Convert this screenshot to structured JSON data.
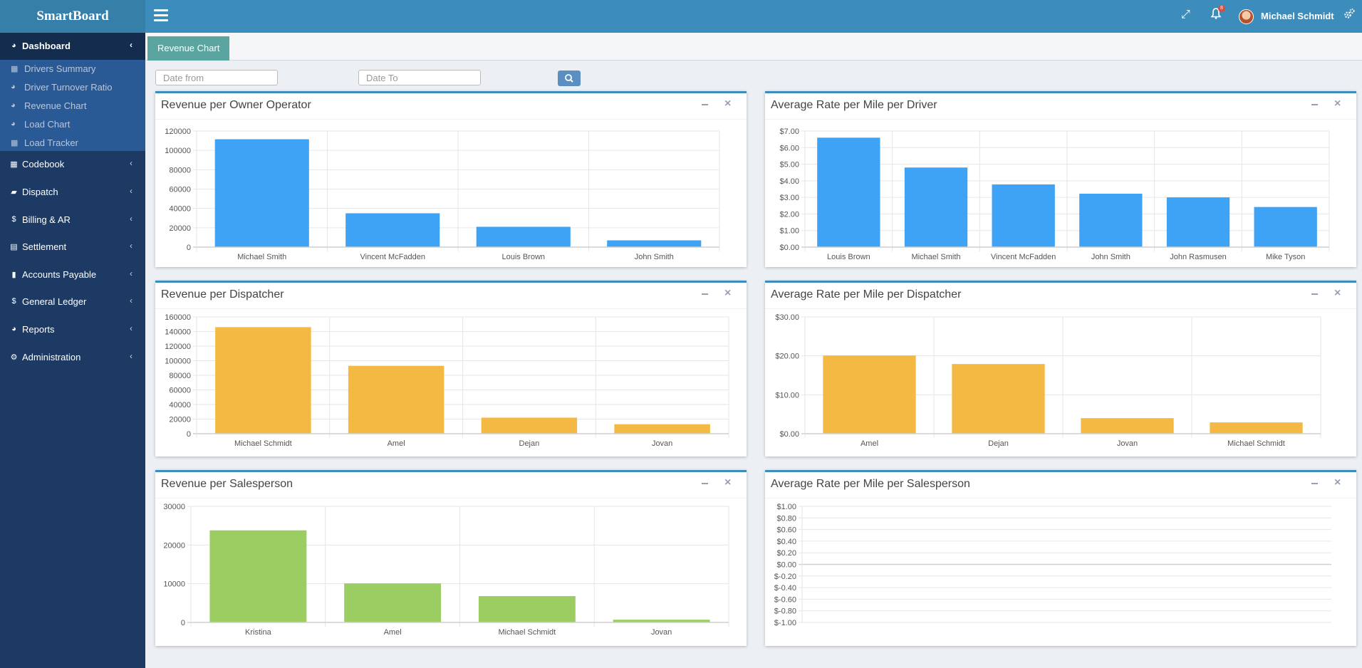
{
  "header": {
    "logo": "SmartBoard",
    "username": "Michael Schmidt",
    "notifications": "8",
    "icons": [
      "hamburger-icon",
      "expand-icon",
      "bell-icon",
      "gears-icon"
    ]
  },
  "sidebar": {
    "items": [
      {
        "label": "Dashboard",
        "icon": "dashboard-icon"
      },
      {
        "label": "Codebook",
        "icon": "grid-icon"
      },
      {
        "label": "Dispatch",
        "icon": "truck-icon"
      },
      {
        "label": "Billing & AR",
        "icon": "dollar-icon"
      },
      {
        "label": "Settlement",
        "icon": "calculator-icon"
      },
      {
        "label": "Accounts Payable",
        "icon": "book-icon"
      },
      {
        "label": "General Ledger",
        "icon": "dollar-icon"
      },
      {
        "label": "Reports",
        "icon": "pie-icon"
      },
      {
        "label": "Administration",
        "icon": "gears-icon"
      }
    ],
    "submenu": [
      {
        "label": "Drivers Summary",
        "icon": "grid-icon"
      },
      {
        "label": "Driver Turnover Ratio",
        "icon": "pie-icon"
      },
      {
        "label": "Revenue Chart",
        "icon": "pie-icon"
      },
      {
        "label": "Load Chart",
        "icon": "pie-icon"
      },
      {
        "label": "Load Tracker",
        "icon": "grid-icon"
      }
    ]
  },
  "tab": {
    "label": "Revenue Chart"
  },
  "filters": {
    "date_from_placeholder": "Date from",
    "date_to_placeholder": "Date To"
  },
  "colors": {
    "blue": "#3fa3f5",
    "orange": "#f4b942",
    "green": "#9ccd63",
    "header": "#3c8dbc",
    "sidebar": "#1c3a63"
  },
  "chart_data": [
    {
      "type": "bar",
      "title": "Revenue per Owner Operator",
      "categories": [
        "Michael Smith",
        "Vincent McFadden",
        "Louis Brown",
        "John Smith"
      ],
      "values": [
        111500,
        35000,
        21000,
        7000
      ],
      "ylim": [
        0,
        120000
      ],
      "yticks": [
        "0",
        "20000",
        "40000",
        "60000",
        "80000",
        "100000",
        "120000"
      ],
      "color": "#3fa3f5"
    },
    {
      "type": "bar",
      "title": "Average Rate per Mile per Driver",
      "categories": [
        "Louis Brown",
        "Michael Smith",
        "Vincent McFadden",
        "John Smith",
        "John Rasmusen",
        "Mike Tyson"
      ],
      "values": [
        6.6,
        4.8,
        3.78,
        3.22,
        3.0,
        2.42
      ],
      "ylim": [
        0,
        7
      ],
      "yticks": [
        "$0.00",
        "$1.00",
        "$2.00",
        "$3.00",
        "$4.00",
        "$5.00",
        "$6.00",
        "$7.00"
      ],
      "color": "#3fa3f5"
    },
    {
      "type": "bar",
      "title": "Revenue per Dispatcher",
      "categories": [
        "Michael Schmidt",
        "Amel",
        "Dejan",
        "Jovan"
      ],
      "values": [
        146000,
        93000,
        22000,
        13000
      ],
      "ylim": [
        0,
        160000
      ],
      "yticks": [
        "0",
        "20000",
        "40000",
        "60000",
        "80000",
        "100000",
        "120000",
        "140000",
        "160000"
      ],
      "color": "#f4b942"
    },
    {
      "type": "bar",
      "title": "Average Rate per Mile per Dispatcher",
      "categories": [
        "Amel",
        "Dejan",
        "Jovan",
        "Michael Schmidt"
      ],
      "values": [
        20.1,
        17.9,
        4.0,
        2.9
      ],
      "ylim": [
        0,
        30
      ],
      "yticks": [
        "$0.00",
        "$10.00",
        "$20.00",
        "$30.00"
      ],
      "color": "#f4b942"
    },
    {
      "type": "bar",
      "title": "Revenue per Salesperson",
      "categories": [
        "Kristina",
        "Amel",
        "Michael Schmidt",
        "Jovan"
      ],
      "values": [
        23800,
        10100,
        6800,
        700
      ],
      "ylim": [
        0,
        30000
      ],
      "yticks": [
        "0",
        "10000",
        "20000",
        "30000"
      ],
      "color": "#9ccd63"
    },
    {
      "type": "bar",
      "title": "Average Rate per Mile per Salesperson",
      "categories": [],
      "values": [],
      "ylim": [
        -1,
        1
      ],
      "yticks": [
        "$-1.00",
        "$-0.80",
        "$-0.60",
        "$-0.40",
        "$-0.20",
        "$0.00",
        "$0.20",
        "$0.40",
        "$0.60",
        "$0.80",
        "$1.00"
      ],
      "color": "#9ccd63"
    }
  ]
}
